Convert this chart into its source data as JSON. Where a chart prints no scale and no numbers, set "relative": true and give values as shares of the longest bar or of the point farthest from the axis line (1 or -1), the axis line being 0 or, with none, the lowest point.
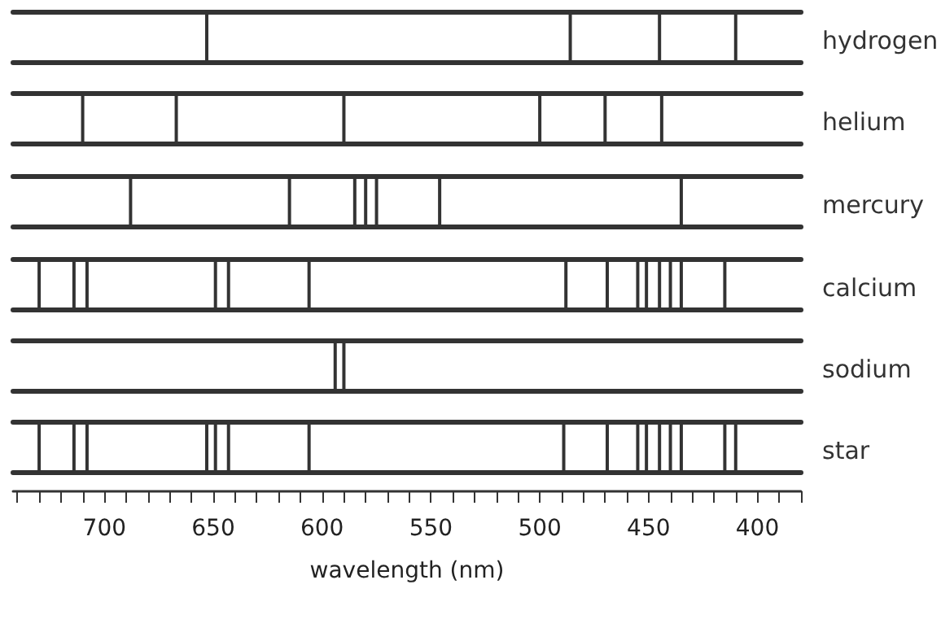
{
  "chart_data": [
    {
      "type": "bar",
      "relative": true,
      "xlim": [
        742,
        380
      ],
      "tick_labels": false,
      "x": [
        653,
        486,
        445,
        410
      ],
      "series": [
        {
          "name": "hydrogen",
          "color": "#333333",
          "values": [
            1,
            1,
            1,
            1
          ]
        }
      ]
    },
    {
      "type": "bar",
      "relative": true,
      "xlim": [
        742,
        380
      ],
      "tick_labels": false,
      "x": [
        710,
        667,
        590,
        500,
        470,
        444
      ],
      "series": [
        {
          "name": "helium",
          "color": "#333333",
          "values": [
            1,
            1,
            1,
            1,
            1,
            1
          ]
        }
      ]
    },
    {
      "type": "bar",
      "relative": true,
      "xlim": [
        742,
        380
      ],
      "tick_labels": false,
      "x": [
        688,
        615,
        585,
        580,
        575,
        546,
        435
      ],
      "series": [
        {
          "name": "mercury",
          "color": "#333333",
          "values": [
            1,
            1,
            1,
            1,
            1,
            1,
            1
          ]
        }
      ]
    },
    {
      "type": "bar",
      "relative": true,
      "xlim": [
        742,
        380
      ],
      "tick_labels": false,
      "x": [
        730,
        714,
        708,
        649,
        643,
        606,
        488,
        469,
        455,
        451,
        445,
        440,
        435,
        415
      ],
      "series": [
        {
          "name": "calcium",
          "color": "#333333",
          "values": [
            1,
            1,
            1,
            1,
            1,
            1,
            1,
            1,
            1,
            1,
            1,
            1,
            1,
            1
          ]
        }
      ]
    },
    {
      "type": "bar",
      "relative": true,
      "xlim": [
        742,
        380
      ],
      "tick_labels": false,
      "x": [
        594,
        590
      ],
      "series": [
        {
          "name": "sodium",
          "color": "#333333",
          "values": [
            1,
            1
          ]
        }
      ]
    },
    {
      "type": "bar",
      "relative": true,
      "xlim": [
        742,
        380
      ],
      "xlabel": "wavelength (nm)",
      "x": [
        730,
        714,
        708,
        653,
        649,
        643,
        606,
        489,
        469,
        455,
        451,
        445,
        440,
        435,
        415,
        410
      ],
      "series": [
        {
          "name": "star",
          "color": "#333333",
          "values": [
            1,
            1,
            1,
            1,
            1,
            1,
            1,
            1,
            1,
            1,
            1,
            1,
            1,
            1,
            1,
            1
          ]
        }
      ],
      "xticks": [
        {
          "value": 740,
          "label": null
        },
        {
          "value": 730,
          "label": null
        },
        {
          "value": 720,
          "label": null
        },
        {
          "value": 710,
          "label": null
        },
        700,
        {
          "value": 690,
          "label": null
        },
        {
          "value": 680,
          "label": null
        },
        {
          "value": 670,
          "label": null
        },
        {
          "value": 660,
          "label": null
        },
        650,
        {
          "value": 640,
          "label": null
        },
        {
          "value": 630,
          "label": null
        },
        {
          "value": 620,
          "label": null
        },
        {
          "value": 610,
          "label": null
        },
        600,
        {
          "value": 590,
          "label": null
        },
        {
          "value": 580,
          "label": null
        },
        {
          "value": 570,
          "label": null
        },
        {
          "value": 560,
          "label": null
        },
        550,
        {
          "value": 540,
          "label": null
        },
        {
          "value": 530,
          "label": null
        },
        {
          "value": 520,
          "label": null
        },
        {
          "value": 510,
          "label": null
        },
        500,
        {
          "value": 490,
          "label": null
        },
        {
          "value": 480,
          "label": null
        },
        {
          "value": 470,
          "label": null
        },
        {
          "value": 460,
          "label": null
        },
        450,
        {
          "value": 440,
          "label": null
        },
        {
          "value": 430,
          "label": null
        },
        {
          "value": 420,
          "label": null
        },
        {
          "value": 410,
          "label": null
        },
        400,
        {
          "value": 390,
          "label": null
        },
        {
          "value": 380,
          "label": null
        }
      ]
    }
  ]
}
